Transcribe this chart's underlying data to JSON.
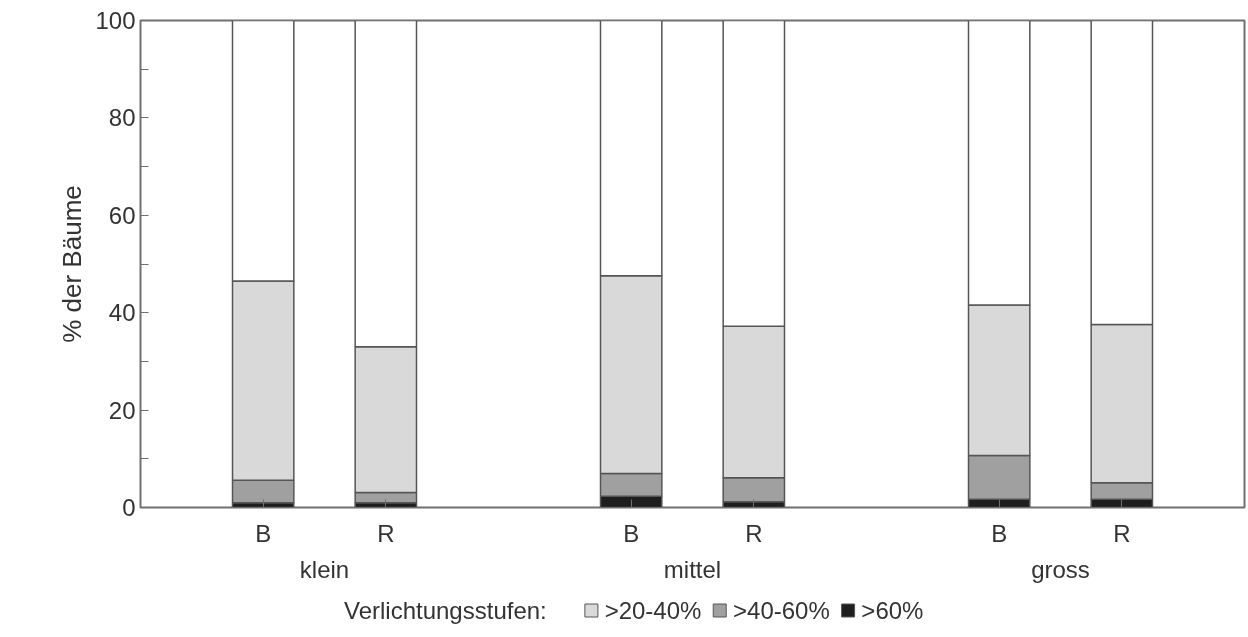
{
  "chart_data": {
    "type": "bar",
    "stacked": true,
    "ylabel": "% der Bäume",
    "legend_title": "Verlichtungsstufen:",
    "categories": [
      "B",
      "R",
      "B",
      "R",
      "B",
      "R"
    ],
    "annotations": [
      "klein",
      "mittel",
      "gross"
    ],
    "series": [
      {
        "name": ">60%",
        "color": "#1e1e1e",
        "values": [
          1,
          1,
          2.3,
          1.2,
          1.7,
          1.7
        ]
      },
      {
        "name": ">40-60%",
        "color": "#a0a0a0",
        "values": [
          4.6,
          2.1,
          4.7,
          4.9,
          9.0,
          3.4
        ]
      },
      {
        "name": ">20-40%",
        "color": "#d9d9d9",
        "values": [
          40.9,
          29.9,
          40.6,
          31.1,
          30.9,
          32.5
        ]
      },
      {
        "color": "#ffffff",
        "values": [
          53.5,
          67,
          52.4,
          62.8,
          58.4,
          62.4
        ]
      }
    ],
    "ylim": [
      0,
      100
    ],
    "yticks": [
      0,
      {
        "value": 10,
        "label": null
      },
      20,
      {
        "value": 30,
        "label": null
      },
      40,
      {
        "value": 50,
        "label": null
      },
      60,
      {
        "value": 70,
        "label": null
      },
      80,
      {
        "value": 90,
        "label": null
      },
      100
    ],
    "grid": false,
    "legend": "bottom"
  }
}
